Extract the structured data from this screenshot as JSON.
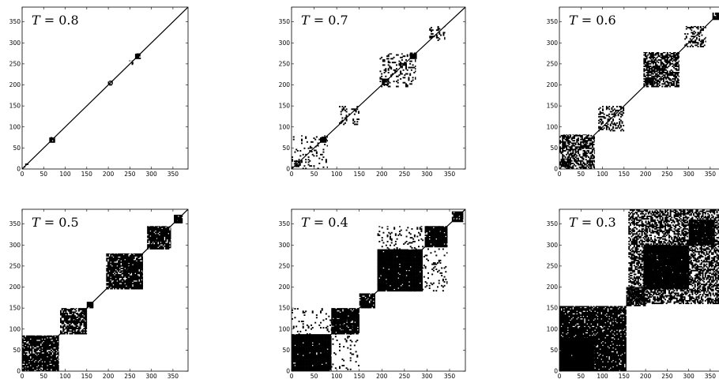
{
  "chart_data": [
    {
      "type": "heatmap",
      "panel": "T=0.8",
      "label": {
        "var": "T",
        "text": " = 0.8"
      },
      "xlim": [
        0,
        385
      ],
      "ylim": [
        0,
        385
      ],
      "xticks": [
        0,
        50,
        100,
        150,
        200,
        250,
        300,
        350
      ],
      "yticks": [
        0,
        50,
        100,
        150,
        200,
        250,
        300,
        350
      ],
      "diagonal": true,
      "blocks": [
        {
          "start": 63,
          "end": 76,
          "density": 0.75
        },
        {
          "start": 262,
          "end": 275,
          "density": 0.85
        },
        {
          "start": 199,
          "end": 210,
          "density": 0.35
        },
        {
          "start": 4,
          "end": 14,
          "density": 0.3
        },
        {
          "start": 248,
          "end": 258,
          "density": 0.25
        }
      ]
    },
    {
      "type": "heatmap",
      "panel": "T=0.7",
      "label": {
        "var": "T",
        "text": " = 0.7"
      },
      "xlim": [
        0,
        385
      ],
      "ylim": [
        0,
        385
      ],
      "xticks": [
        0,
        50,
        100,
        150,
        200,
        250,
        300,
        350
      ],
      "yticks": [
        0,
        50,
        100,
        150,
        200,
        250,
        300,
        350
      ],
      "diagonal": true,
      "blocks": [
        {
          "start": 0,
          "end": 80,
          "density": 0.12
        },
        {
          "start": 5,
          "end": 20,
          "density": 0.7
        },
        {
          "start": 40,
          "end": 55,
          "density": 0.5
        },
        {
          "start": 63,
          "end": 77,
          "density": 0.9
        },
        {
          "start": 105,
          "end": 150,
          "density": 0.18
        },
        {
          "start": 195,
          "end": 275,
          "density": 0.2
        },
        {
          "start": 200,
          "end": 215,
          "density": 0.85
        },
        {
          "start": 240,
          "end": 255,
          "density": 0.6
        },
        {
          "start": 262,
          "end": 277,
          "density": 0.9
        },
        {
          "start": 305,
          "end": 340,
          "density": 0.25
        }
      ]
    },
    {
      "type": "heatmap",
      "panel": "T=0.6",
      "label": {
        "var": "T",
        "text": " = 0.6"
      },
      "xlim": [
        0,
        385
      ],
      "ylim": [
        0,
        385
      ],
      "xticks": [
        0,
        50,
        100,
        150,
        200,
        250,
        300,
        350
      ],
      "yticks": [
        0,
        50,
        100,
        150,
        200,
        250,
        300,
        350
      ],
      "diagonal": true,
      "blocks": [
        {
          "start": 0,
          "end": 82,
          "density": 0.55
        },
        {
          "start": 5,
          "end": 25,
          "density": 0.85
        },
        {
          "start": 90,
          "end": 150,
          "density": 0.35
        },
        {
          "start": 195,
          "end": 278,
          "density": 0.6
        },
        {
          "start": 200,
          "end": 218,
          "density": 0.9
        },
        {
          "start": 290,
          "end": 340,
          "density": 0.35
        },
        {
          "start": 355,
          "end": 372,
          "density": 0.9
        }
      ]
    },
    {
      "type": "heatmap",
      "panel": "T=0.5",
      "label": {
        "var": "T",
        "text": " = 0.5"
      },
      "xlim": [
        0,
        385
      ],
      "ylim": [
        0,
        385
      ],
      "xticks": [
        0,
        50,
        100,
        150,
        200,
        250,
        300,
        350
      ],
      "yticks": [
        0,
        50,
        100,
        150,
        200,
        250,
        300,
        350
      ],
      "diagonal": true,
      "blocks": [
        {
          "start": 0,
          "end": 85,
          "density": 0.82
        },
        {
          "start": 88,
          "end": 150,
          "density": 0.7
        },
        {
          "start": 150,
          "end": 165,
          "density": 0.95
        },
        {
          "start": 195,
          "end": 280,
          "density": 0.85
        },
        {
          "start": 290,
          "end": 345,
          "density": 0.85
        },
        {
          "start": 352,
          "end": 372,
          "density": 0.95
        }
      ]
    },
    {
      "type": "heatmap",
      "panel": "T=0.4",
      "label": {
        "var": "T",
        "text": " = 0.4"
      },
      "xlim": [
        0,
        385
      ],
      "ylim": [
        0,
        385
      ],
      "xticks": [
        0,
        50,
        100,
        150,
        200,
        250,
        300,
        350
      ],
      "yticks": [
        0,
        50,
        100,
        150,
        200,
        250,
        300,
        350
      ],
      "diagonal": true,
      "blocks": [
        {
          "start": 0,
          "end": 88,
          "density": 0.97
        },
        {
          "start": 88,
          "end": 150,
          "density": 0.88
        },
        {
          "start": 0,
          "end": 150,
          "density": 0.1
        },
        {
          "start": 150,
          "end": 185,
          "density": 0.85
        },
        {
          "start": 190,
          "end": 290,
          "density": 0.97
        },
        {
          "start": 190,
          "end": 345,
          "density": 0.12
        },
        {
          "start": 295,
          "end": 345,
          "density": 0.95
        },
        {
          "start": 355,
          "end": 380,
          "density": 0.95
        }
      ]
    },
    {
      "type": "heatmap",
      "panel": "T=0.3",
      "label": {
        "var": "T",
        "text": " = 0.3"
      },
      "xlim": [
        0,
        385
      ],
      "ylim": [
        0,
        385
      ],
      "xticks": [
        0,
        50,
        100,
        150,
        200,
        250,
        300,
        350
      ],
      "yticks": [
        0,
        50,
        100,
        150,
        200,
        250,
        300,
        350
      ],
      "diagonal": true,
      "blocks": [
        {
          "start": 0,
          "end": 155,
          "density": 0.88
        },
        {
          "start": 0,
          "end": 80,
          "density": 0.99
        },
        {
          "start": 160,
          "end": 385,
          "density": 0.55
        },
        {
          "start": 195,
          "end": 300,
          "density": 0.97
        },
        {
          "start": 300,
          "end": 360,
          "density": 0.95
        },
        {
          "start": 155,
          "end": 200,
          "density": 0.7
        }
      ]
    }
  ]
}
